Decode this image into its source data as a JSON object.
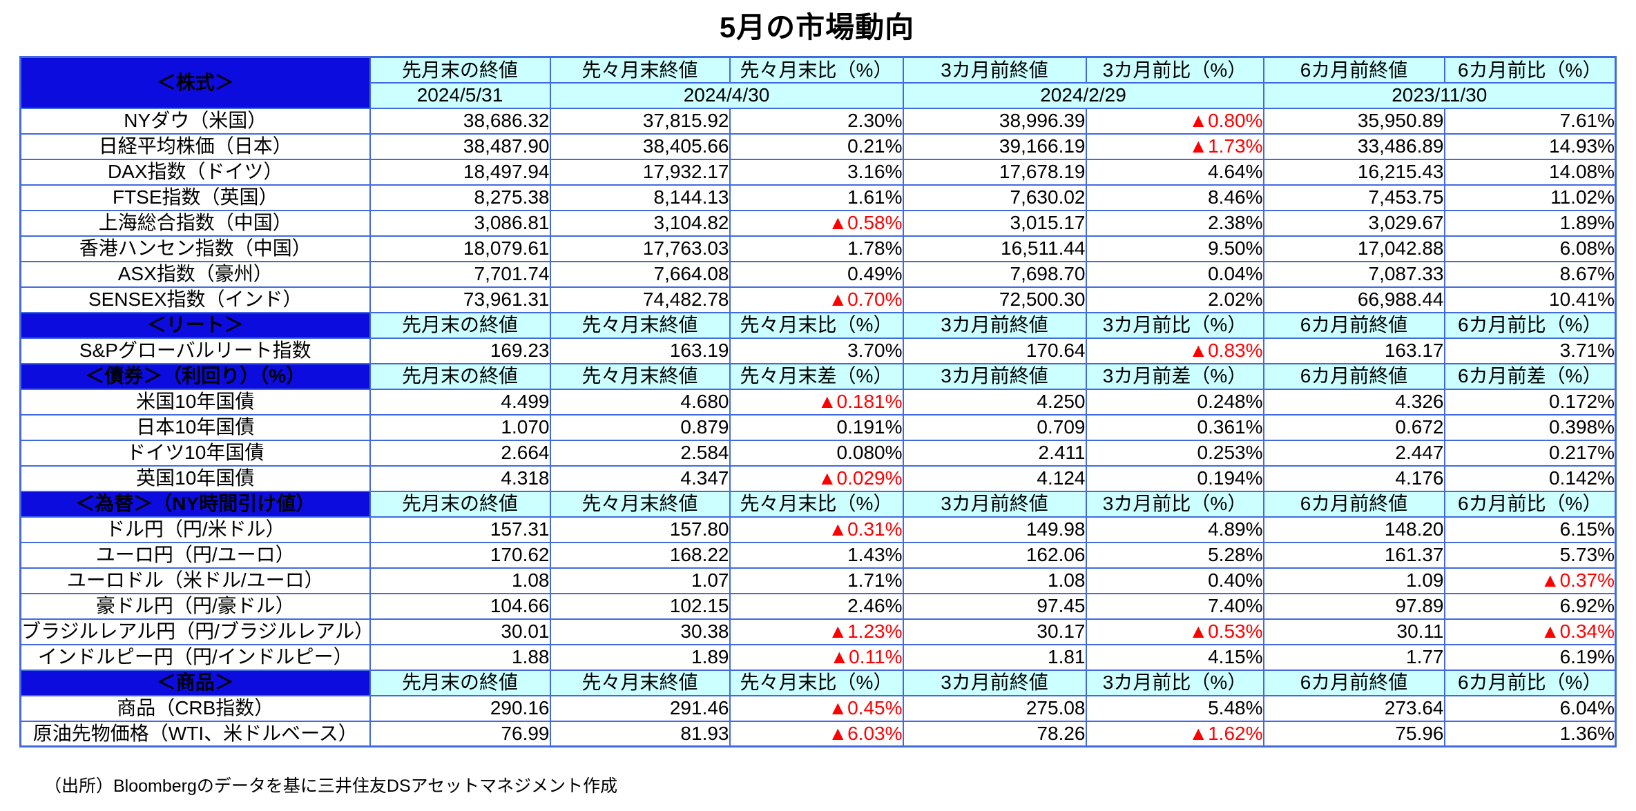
{
  "title": "5月の市場動向",
  "source": "（出所）Bloombergのデータを基に三井住友DSアセットマネジメント作成",
  "colors": {
    "section_blue": "#0C0CDF",
    "header_cyan": "#CCFFFF",
    "border_blue": "#4169E1",
    "negative_red": "#FF0000"
  },
  "negative_marker": "▲",
  "table": {
    "sections": [
      {
        "name": "＜株式＞",
        "columns": [
          "先月末の終値",
          "先々月末終値",
          "先々月末比（%）",
          "3カ月前終値",
          "3カ月前比（%）",
          "6カ月前終値",
          "6カ月前比（%）"
        ],
        "dates": [
          "2024/5/31",
          "2024/4/30",
          "2024/2/29",
          "2023/11/30"
        ],
        "rows": [
          {
            "label": "NYダウ（米国）",
            "values": [
              "38,686.32",
              "37,815.92",
              "2.30%",
              "38,996.39",
              "▲0.80%",
              "35,950.89",
              "7.61%"
            ]
          },
          {
            "label": "日経平均株価（日本）",
            "values": [
              "38,487.90",
              "38,405.66",
              "0.21%",
              "39,166.19",
              "▲1.73%",
              "33,486.89",
              "14.93%"
            ]
          },
          {
            "label": "DAX指数（ドイツ）",
            "values": [
              "18,497.94",
              "17,932.17",
              "3.16%",
              "17,678.19",
              "4.64%",
              "16,215.43",
              "14.08%"
            ]
          },
          {
            "label": "FTSE指数（英国）",
            "values": [
              "8,275.38",
              "8,144.13",
              "1.61%",
              "7,630.02",
              "8.46%",
              "7,453.75",
              "11.02%"
            ]
          },
          {
            "label": "上海総合指数（中国）",
            "values": [
              "3,086.81",
              "3,104.82",
              "▲0.58%",
              "3,015.17",
              "2.38%",
              "3,029.67",
              "1.89%"
            ]
          },
          {
            "label": "香港ハンセン指数（中国）",
            "values": [
              "18,079.61",
              "17,763.03",
              "1.78%",
              "16,511.44",
              "9.50%",
              "17,042.88",
              "6.08%"
            ]
          },
          {
            "label": "ASX指数（豪州）",
            "values": [
              "7,701.74",
              "7,664.08",
              "0.49%",
              "7,698.70",
              "0.04%",
              "7,087.33",
              "8.67%"
            ]
          },
          {
            "label": "SENSEX指数（インド）",
            "values": [
              "73,961.31",
              "74,482.78",
              "▲0.70%",
              "72,500.30",
              "2.02%",
              "66,988.44",
              "10.41%"
            ]
          }
        ]
      },
      {
        "name": "＜リート＞",
        "columns": [
          "先月末の終値",
          "先々月末終値",
          "先々月末比（%）",
          "3カ月前終値",
          "3カ月前比（%）",
          "6カ月前終値",
          "6カ月前比（%）"
        ],
        "rows": [
          {
            "label": "S&Pグローバルリート指数",
            "values": [
              "169.23",
              "163.19",
              "3.70%",
              "170.64",
              "▲0.83%",
              "163.17",
              "3.71%"
            ]
          }
        ]
      },
      {
        "name": "＜債券＞（利回り）（%）",
        "columns": [
          "先月末の終値",
          "先々月末終値",
          "先々月末差（%）",
          "3カ月前終値",
          "3カ月前差（%）",
          "6カ月前終値",
          "6カ月前差（%）"
        ],
        "rows": [
          {
            "label": "米国10年国債",
            "values": [
              "4.499",
              "4.680",
              "▲0.181%",
              "4.250",
              "0.248%",
              "4.326",
              "0.172%"
            ]
          },
          {
            "label": "日本10年国債",
            "values": [
              "1.070",
              "0.879",
              "0.191%",
              "0.709",
              "0.361%",
              "0.672",
              "0.398%"
            ]
          },
          {
            "label": "ドイツ10年国債",
            "values": [
              "2.664",
              "2.584",
              "0.080%",
              "2.411",
              "0.253%",
              "2.447",
              "0.217%"
            ]
          },
          {
            "label": "英国10年国債",
            "values": [
              "4.318",
              "4.347",
              "▲0.029%",
              "4.124",
              "0.194%",
              "4.176",
              "0.142%"
            ]
          }
        ]
      },
      {
        "name": "＜為替＞（NY時間引け値）",
        "columns": [
          "先月末の終値",
          "先々月末終値",
          "先々月末比（%）",
          "3カ月前終値",
          "3カ月前比（%）",
          "6カ月前終値",
          "6カ月前比（%）"
        ],
        "rows": [
          {
            "label": "ドル円（円/米ドル）",
            "values": [
              "157.31",
              "157.80",
              "▲0.31%",
              "149.98",
              "4.89%",
              "148.20",
              "6.15%"
            ]
          },
          {
            "label": "ユーロ円（円/ユーロ）",
            "values": [
              "170.62",
              "168.22",
              "1.43%",
              "162.06",
              "5.28%",
              "161.37",
              "5.73%"
            ]
          },
          {
            "label": "ユーロドル（米ドル/ユーロ）",
            "values": [
              "1.08",
              "1.07",
              "1.71%",
              "1.08",
              "0.40%",
              "1.09",
              "▲0.37%"
            ]
          },
          {
            "label": "豪ドル円（円/豪ドル）",
            "values": [
              "104.66",
              "102.15",
              "2.46%",
              "97.45",
              "7.40%",
              "97.89",
              "6.92%"
            ]
          },
          {
            "label": "ブラジルレアル円（円/ブラジルレアル）",
            "values": [
              "30.01",
              "30.38",
              "▲1.23%",
              "30.17",
              "▲0.53%",
              "30.11",
              "▲0.34%"
            ]
          },
          {
            "label": "インドルピー円（円/インドルピー）",
            "values": [
              "1.88",
              "1.89",
              "▲0.11%",
              "1.81",
              "4.15%",
              "1.77",
              "6.19%"
            ]
          }
        ]
      },
      {
        "name": "＜商品＞",
        "columns": [
          "先月末の終値",
          "先々月末終値",
          "先々月末比（%）",
          "3カ月前終値",
          "3カ月前比（%）",
          "6カ月前終値",
          "6カ月前比（%）"
        ],
        "rows": [
          {
            "label": "商品（CRB指数）",
            "values": [
              "290.16",
              "291.46",
              "▲0.45%",
              "275.08",
              "5.48%",
              "273.64",
              "6.04%"
            ]
          },
          {
            "label": "原油先物価格（WTI、米ドルベース）",
            "values": [
              "76.99",
              "81.93",
              "▲6.03%",
              "78.26",
              "▲1.62%",
              "75.96",
              "1.36%"
            ]
          }
        ]
      }
    ]
  }
}
